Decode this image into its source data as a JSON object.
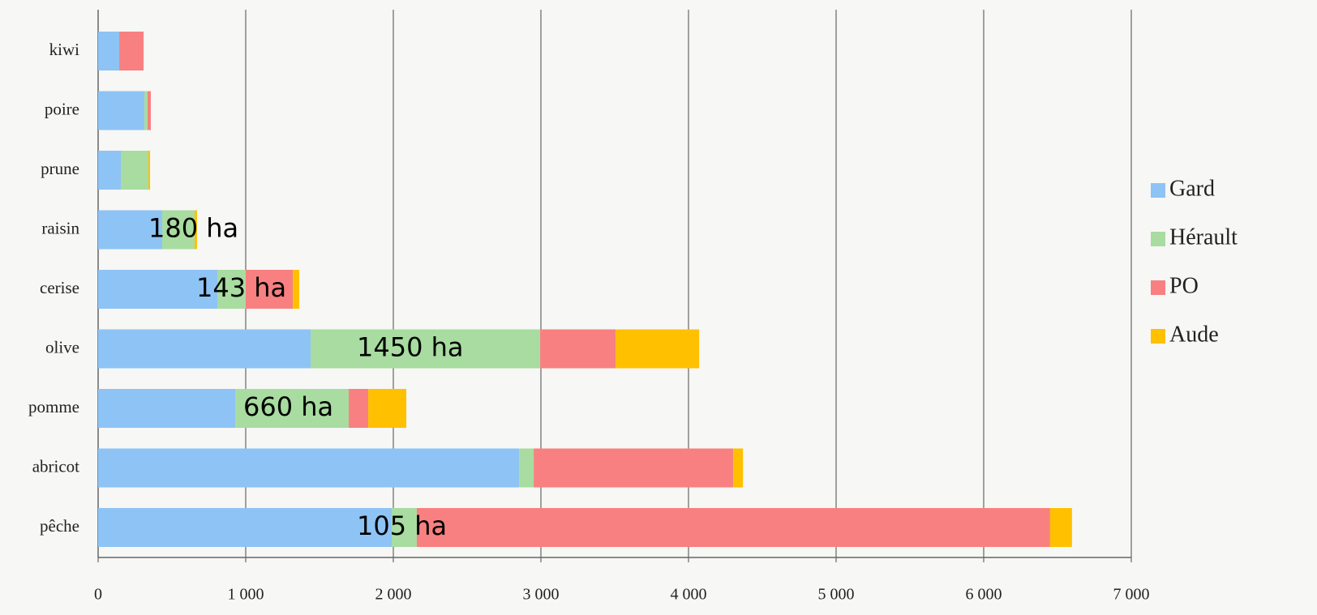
{
  "chart_data": {
    "type": "stacked_barh",
    "categories": [
      "kiwi",
      "poire",
      "prune",
      "raisin",
      "cerise",
      "olive",
      "pomme",
      "abricot",
      "pêche"
    ],
    "series": [
      {
        "name": "Gard",
        "color": "#8ec3f5",
        "values": [
          143,
          313,
          154,
          434,
          808,
          1440,
          929,
          2852,
          1989
        ]
      },
      {
        "name": "Hérault",
        "color": "#a8dca0",
        "values": [
          0,
          22,
          187,
          220,
          192,
          1555,
          769,
          99,
          170
        ]
      },
      {
        "name": "PO",
        "color": "#f88080",
        "values": [
          165,
          22,
          0,
          0,
          319,
          511,
          132,
          1352,
          4291
        ]
      },
      {
        "name": "Aude",
        "color": "#ffc000",
        "values": [
          0,
          0,
          11,
          16,
          44,
          566,
          258,
          66,
          148
        ]
      }
    ],
    "xlim": [
      0,
      7000
    ],
    "xticks": [
      0,
      {
        "value": 1000,
        "label": "1 000"
      },
      {
        "value": 2000,
        "label": "2 000"
      },
      {
        "value": 3000,
        "label": "3 000"
      },
      {
        "value": 4000,
        "label": "4 000"
      },
      {
        "value": 5000,
        "label": "5 000"
      },
      {
        "value": 6000,
        "label": "6 000"
      },
      {
        "value": 7000,
        "label": "7 000"
      }
    ],
    "grid": true,
    "legend": "right",
    "annotations": [
      "180 ha",
      "143 ha",
      "1450 ha",
      "660 ha",
      "105 ha"
    ]
  }
}
